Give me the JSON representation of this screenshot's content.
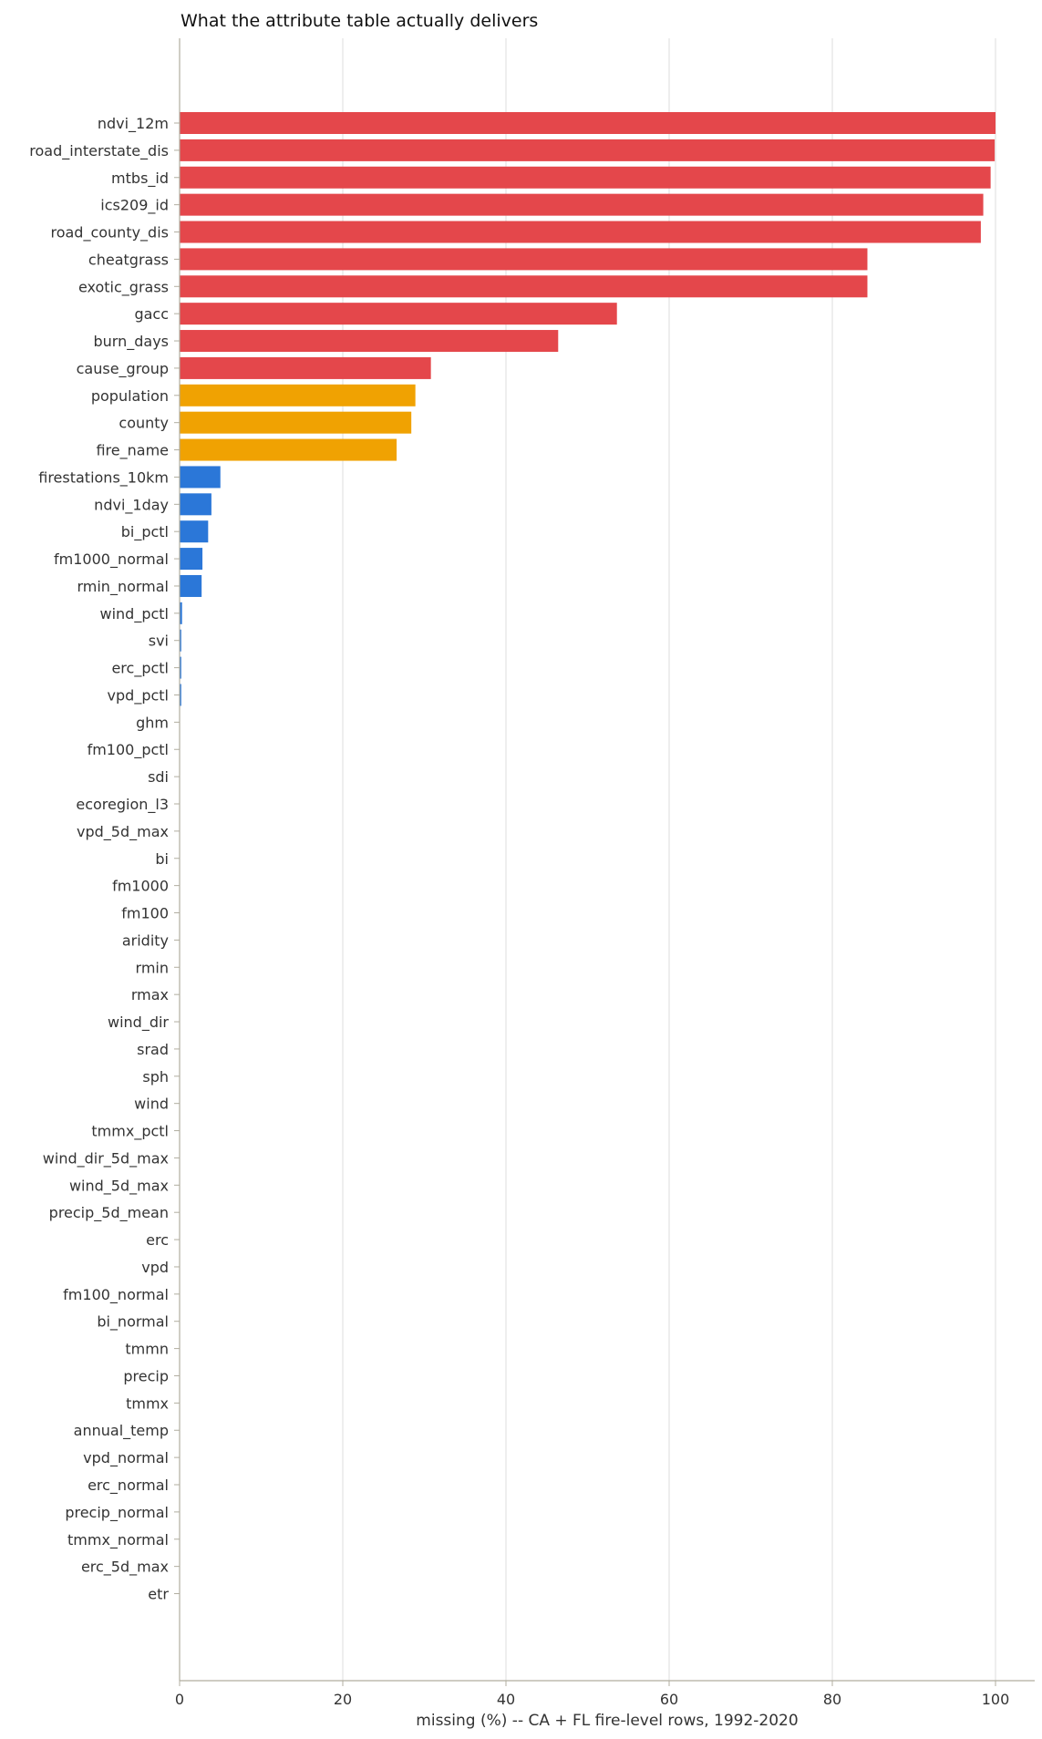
{
  "chart_data": {
    "type": "bar",
    "orientation": "horizontal",
    "title": "What the attribute table actually delivers",
    "xlabel": "missing (%) -- CA + FL fire-level rows, 1992-2020",
    "ylabel": "",
    "xlim": [
      0,
      105
    ],
    "xticks": [
      0,
      20,
      40,
      60,
      80,
      100
    ],
    "grid": "vertical",
    "colors": {
      "high": "#e4474b",
      "medium": "#f0a202",
      "low": "#2b77d8",
      "grid": "#dddddd",
      "axis": "#b0ad9f"
    },
    "categories": [
      "ndvi_12m",
      "road_interstate_dis",
      "mtbs_id",
      "ics209_id",
      "road_county_dis",
      "cheatgrass",
      "exotic_grass",
      "gacc",
      "burn_days",
      "cause_group",
      "population",
      "county",
      "fire_name",
      "firestations_10km",
      "ndvi_1day",
      "bi_pctl",
      "fm1000_normal",
      "rmin_normal",
      "wind_pctl",
      "svi",
      "erc_pctl",
      "vpd_pctl",
      "ghm",
      "fm100_pctl",
      "sdi",
      "ecoregion_l3",
      "vpd_5d_max",
      "bi",
      "fm1000",
      "fm100",
      "aridity",
      "rmin",
      "rmax",
      "wind_dir",
      "srad",
      "sph",
      "wind",
      "tmmx_pctl",
      "wind_dir_5d_max",
      "wind_5d_max",
      "precip_5d_mean",
      "erc",
      "vpd",
      "fm100_normal",
      "bi_normal",
      "tmmn",
      "precip",
      "tmmx",
      "annual_temp",
      "vpd_normal",
      "erc_normal",
      "precip_normal",
      "tmmx_normal",
      "erc_5d_max",
      "etr"
    ],
    "values": [
      100.0,
      99.9,
      99.4,
      98.5,
      98.2,
      84.3,
      84.3,
      53.6,
      46.4,
      30.8,
      28.9,
      28.4,
      26.6,
      5.0,
      3.9,
      3.5,
      2.8,
      2.7,
      0.3,
      0.2,
      0.2,
      0.2,
      0,
      0,
      0,
      0,
      0,
      0,
      0,
      0,
      0,
      0,
      0,
      0,
      0,
      0,
      0,
      0,
      0,
      0,
      0,
      0,
      0,
      0,
      0,
      0,
      0,
      0,
      0,
      0,
      0,
      0,
      0,
      0,
      0
    ],
    "severity": [
      "high",
      "high",
      "high",
      "high",
      "high",
      "high",
      "high",
      "high",
      "high",
      "high",
      "medium",
      "medium",
      "medium",
      "low",
      "low",
      "low",
      "low",
      "low",
      "low",
      "low",
      "low",
      "low",
      "low",
      "low",
      "low",
      "low",
      "low",
      "low",
      "low",
      "low",
      "low",
      "low",
      "low",
      "low",
      "low",
      "low",
      "low",
      "low",
      "low",
      "low",
      "low",
      "low",
      "low",
      "low",
      "low",
      "low",
      "low",
      "low",
      "low",
      "low",
      "low",
      "low",
      "low",
      "low",
      "low"
    ]
  }
}
